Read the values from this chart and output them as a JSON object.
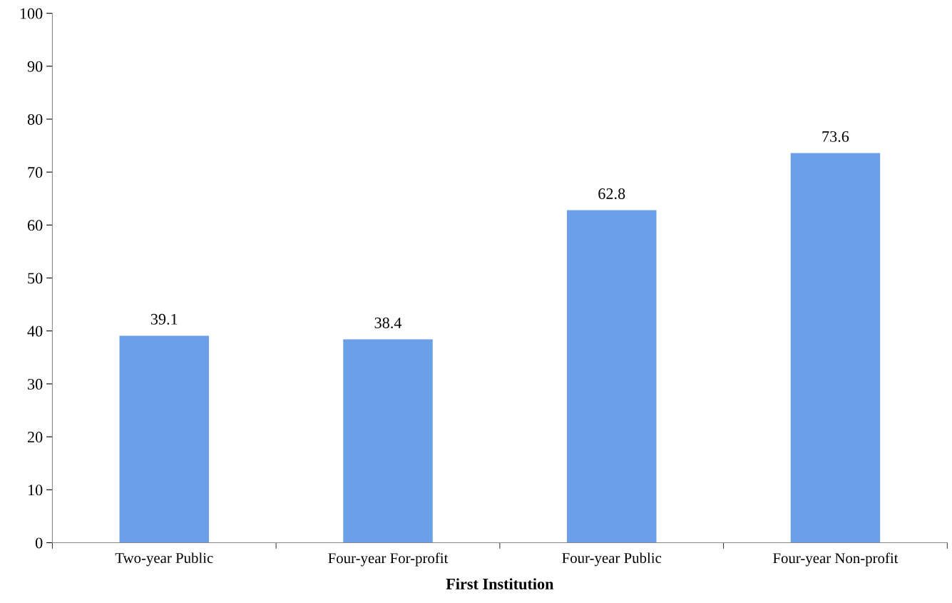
{
  "chart_data": {
    "type": "bar",
    "xlabel": "First Institution",
    "categories": [
      "Two-year Public",
      "Four-year For-profit",
      "Four-year Public",
      "Four-year Non-profit"
    ],
    "values": [
      39.1,
      38.4,
      62.8,
      73.6
    ],
    "color": "#6b9fe8",
    "ylim": [
      0,
      100
    ],
    "yticks": [
      0,
      10,
      20,
      30,
      40,
      50,
      60,
      70,
      80,
      90,
      100
    ],
    "data_labels": true,
    "grid": false
  }
}
